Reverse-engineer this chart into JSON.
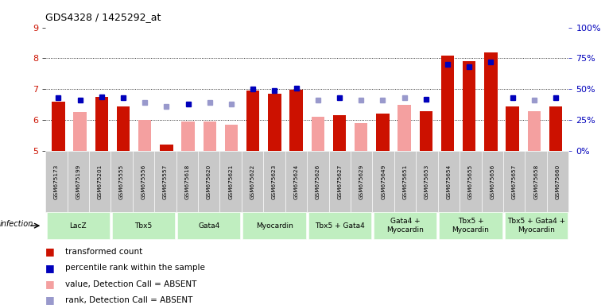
{
  "title": "GDS4328 / 1425292_at",
  "samples": [
    "GSM675173",
    "GSM675199",
    "GSM675201",
    "GSM675555",
    "GSM675556",
    "GSM675557",
    "GSM675618",
    "GSM675620",
    "GSM675621",
    "GSM675622",
    "GSM675623",
    "GSM675624",
    "GSM675626",
    "GSM675627",
    "GSM675629",
    "GSM675649",
    "GSM675651",
    "GSM675653",
    "GSM675654",
    "GSM675655",
    "GSM675656",
    "GSM675657",
    "GSM675658",
    "GSM675660"
  ],
  "bar_values": [
    6.6,
    6.25,
    6.75,
    6.45,
    6.0,
    5.2,
    5.95,
    5.95,
    5.85,
    6.95,
    6.85,
    6.97,
    6.1,
    6.15,
    5.9,
    6.2,
    6.5,
    6.3,
    8.1,
    7.9,
    8.2,
    6.45,
    6.3,
    6.45
  ],
  "bar_absent": [
    false,
    true,
    false,
    false,
    true,
    false,
    true,
    true,
    true,
    false,
    false,
    false,
    true,
    false,
    true,
    false,
    true,
    false,
    false,
    false,
    false,
    false,
    true,
    false
  ],
  "percentile_values": [
    43,
    41,
    44,
    43,
    39,
    36,
    38,
    39,
    38,
    50,
    49,
    51,
    41,
    43,
    41,
    41,
    43,
    42,
    70,
    68,
    72,
    43,
    41,
    43
  ],
  "percentile_absent": [
    false,
    false,
    false,
    false,
    true,
    true,
    false,
    true,
    true,
    false,
    false,
    false,
    true,
    false,
    true,
    true,
    true,
    false,
    false,
    false,
    false,
    false,
    true,
    false
  ],
  "groups": [
    {
      "label": "LacZ",
      "start": 0,
      "end": 2
    },
    {
      "label": "Tbx5",
      "start": 3,
      "end": 5
    },
    {
      "label": "Gata4",
      "start": 6,
      "end": 8
    },
    {
      "label": "Myocardin",
      "start": 9,
      "end": 11
    },
    {
      "label": "Tbx5 + Gata4",
      "start": 12,
      "end": 14
    },
    {
      "label": "Gata4 +\nMyocardin",
      "start": 15,
      "end": 17
    },
    {
      "label": "Tbx5 +\nMyocardin",
      "start": 18,
      "end": 20
    },
    {
      "label": "Tbx5 + Gata4 +\nMyocardin",
      "start": 21,
      "end": 23
    }
  ],
  "ylim_left": [
    5,
    9
  ],
  "ylim_right": [
    0,
    100
  ],
  "yticks_left": [
    5,
    6,
    7,
    8,
    9
  ],
  "yticks_right": [
    0,
    25,
    50,
    75,
    100
  ],
  "ytick_labels_right": [
    "0%",
    "25%",
    "50%",
    "75%",
    "100%"
  ],
  "bar_color_present": "#cc1100",
  "bar_color_absent": "#f4a0a0",
  "rank_color_present": "#0000bb",
  "rank_color_absent": "#9999cc",
  "bg_sample": "#c8c8c8",
  "bg_group": "#c0eec0"
}
